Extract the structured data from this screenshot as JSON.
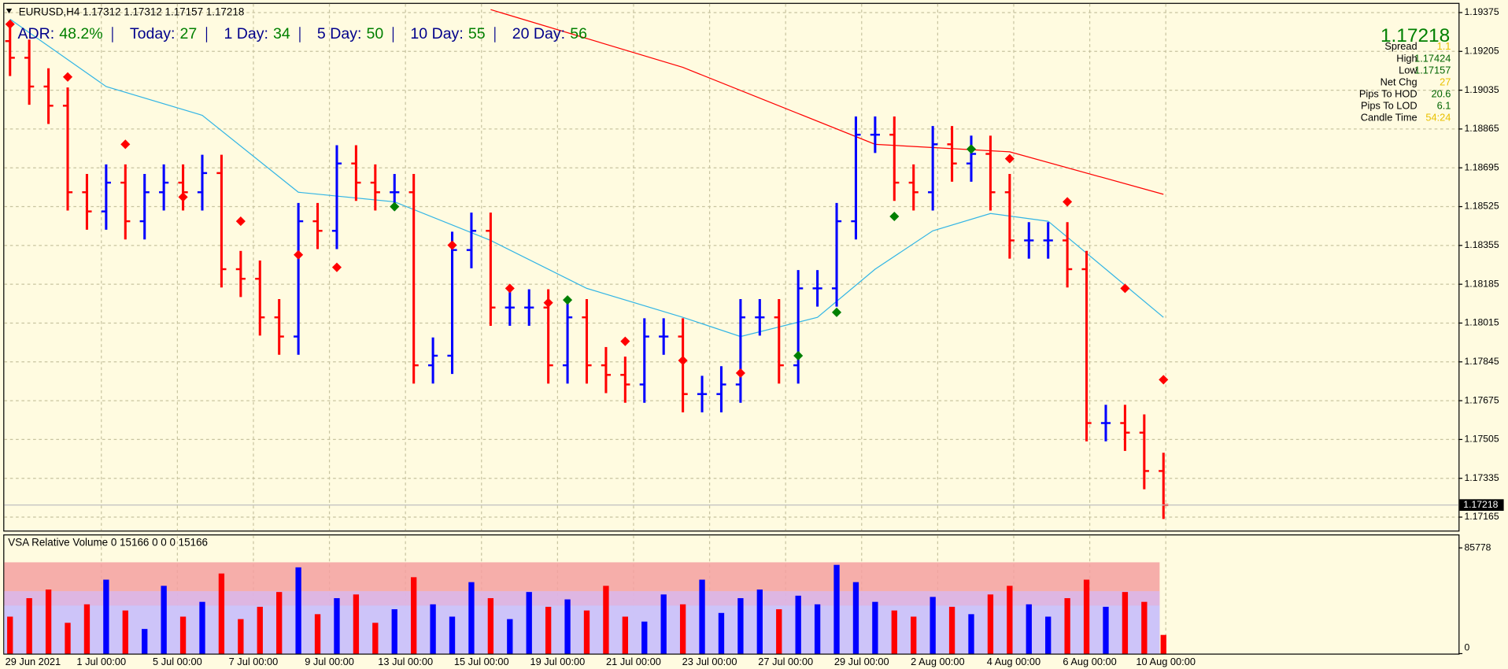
{
  "header": "EURUSD,H4  1.17312 1.17312 1.17157 1.17218",
  "adr": [
    {
      "label": "ADR:",
      "value": "48.2%"
    },
    {
      "label": "Today:",
      "value": "27"
    },
    {
      "label": "1 Day:",
      "value": "34"
    },
    {
      "label": "5 Day:",
      "value": "50"
    },
    {
      "label": "10 Day:",
      "value": "55"
    },
    {
      "label": "20 Day:",
      "value": "56"
    }
  ],
  "info": {
    "price": "1.17218",
    "rows": [
      {
        "label": "Spread",
        "value": "1.1"
      },
      {
        "label": "High",
        "value": "1.17424"
      },
      {
        "label": "Low",
        "value": "1.17157"
      },
      {
        "label": "Net Chg",
        "value": "27"
      },
      {
        "label": "Pips To HOD",
        "value": "20.6"
      },
      {
        "label": "Pips To LOD",
        "value": "6.1"
      },
      {
        "label": "Candle Time",
        "value": "54:24"
      }
    ]
  },
  "chart_data": [
    {
      "type": "ohlc",
      "up_color": "#0000ff",
      "down_color": "#ff0000",
      "open": [
        1.1925,
        1.19177,
        1.19051,
        1.18967,
        1.18588,
        1.18504,
        1.1863,
        1.18461,
        1.18588,
        1.1863,
        1.18588,
        1.18672,
        1.18251,
        1.18209,
        1.1804,
        1.17956,
        1.18461,
        1.18419,
        1.18714,
        1.1863,
        1.18588,
        1.18588,
        1.1783,
        1.17872,
        1.18335,
        1.18419,
        1.18083,
        1.18083,
        1.18083,
        1.1783,
        1.1804,
        1.1783,
        1.17788,
        1.17746,
        1.17956,
        1.17956,
        1.17704,
        1.17704,
        1.17746,
        1.1804,
        1.1804,
        1.1783,
        1.18167,
        1.18167,
        1.18461,
        1.1884,
        1.1884,
        1.1863,
        1.18588,
        1.18798,
        1.18714,
        1.18756,
        1.18588,
        1.18377,
        1.18377,
        1.18377,
        1.18251,
        1.17577,
        1.17577,
        1.17535,
        1.17367
      ],
      "high": [
        1.1933,
        1.19257,
        1.19131,
        1.19047,
        1.18668,
        1.1871,
        1.1871,
        1.18668,
        1.1871,
        1.1871,
        1.18752,
        1.18752,
        1.18331,
        1.18289,
        1.1812,
        1.18541,
        1.18541,
        1.18794,
        1.18794,
        1.1871,
        1.18668,
        1.18668,
        1.17952,
        1.18415,
        1.18499,
        1.18499,
        1.18163,
        1.18163,
        1.18163,
        1.1812,
        1.1812,
        1.1791,
        1.17868,
        1.18036,
        1.18036,
        1.18036,
        1.17784,
        1.17826,
        1.1812,
        1.1812,
        1.1812,
        1.18247,
        1.18247,
        1.18541,
        1.1892,
        1.1892,
        1.1892,
        1.1871,
        1.18878,
        1.18878,
        1.18836,
        1.18836,
        1.18668,
        1.18457,
        1.18457,
        1.18457,
        1.18331,
        1.17657,
        1.17657,
        1.17615,
        1.17447
      ],
      "low": [
        1.19097,
        1.18971,
        1.18887,
        1.18508,
        1.18424,
        1.18424,
        1.18381,
        1.18381,
        1.18508,
        1.18508,
        1.18508,
        1.18171,
        1.18129,
        1.1796,
        1.17876,
        1.17876,
        1.18339,
        1.18339,
        1.1855,
        1.18508,
        1.18508,
        1.1775,
        1.1775,
        1.17792,
        1.18255,
        1.18003,
        1.18003,
        1.18003,
        1.1775,
        1.1775,
        1.1775,
        1.17708,
        1.17666,
        1.17666,
        1.17876,
        1.17624,
        1.17624,
        1.17624,
        1.17666,
        1.1796,
        1.1775,
        1.1775,
        1.18087,
        1.18087,
        1.18381,
        1.1876,
        1.1855,
        1.18508,
        1.18508,
        1.18634,
        1.18634,
        1.18508,
        1.18297,
        1.18297,
        1.18297,
        1.18171,
        1.17497,
        1.17497,
        1.17455,
        1.17287,
        1.17157
      ],
      "close": [
        1.19177,
        1.19051,
        1.18967,
        1.18588,
        1.18504,
        1.1863,
        1.18461,
        1.18588,
        1.1863,
        1.18588,
        1.18672,
        1.18251,
        1.18209,
        1.1804,
        1.17956,
        1.18461,
        1.18419,
        1.18714,
        1.1863,
        1.18588,
        1.18588,
        1.1783,
        1.17872,
        1.18335,
        1.18419,
        1.18083,
        1.18083,
        1.18083,
        1.1783,
        1.1804,
        1.1783,
        1.17788,
        1.17746,
        1.17956,
        1.17956,
        1.17704,
        1.17704,
        1.17746,
        1.1804,
        1.1804,
        1.1783,
        1.18167,
        1.18167,
        1.18461,
        1.1884,
        1.1884,
        1.1863,
        1.18588,
        1.18798,
        1.18714,
        1.18756,
        1.18588,
        1.18377,
        1.18377,
        1.18377,
        1.18251,
        1.17577,
        1.17577,
        1.17535,
        1.17367,
        1.17218
      ],
      "ylim": [
        1.17106,
        1.19409
      ],
      "yticks": [
        1.19375,
        1.19205,
        1.19035,
        1.18865,
        1.18695,
        1.18525,
        1.18355,
        1.18185,
        1.18015,
        1.17845,
        1.17675,
        1.17505,
        1.17335,
        1.17165
      ],
      "time_labels": [
        "29 Jun 2021",
        "1 Jul 00:00",
        "5 Jul 00:00",
        "7 Jul 00:00",
        "9 Jul 00:00",
        "13 Jul 00:00",
        "15 Jul 00:00",
        "19 Jul 00:00",
        "21 Jul 00:00",
        "23 Jul 00:00",
        "27 Jul 00:00",
        "29 Jul 00:00",
        "2 Aug 00:00",
        "4 Aug 00:00",
        "6 Aug 00:00",
        "10 Aug 00:00"
      ],
      "ma_slow": {
        "color": "#ff0000",
        "x": [
          25,
          35,
          45,
          52,
          60
        ],
        "values": [
          1.19388,
          1.19135,
          1.18798,
          1.18765,
          1.18579
        ]
      },
      "ma_fast": {
        "color": "#33b5e5",
        "x": [
          0,
          5,
          10,
          15,
          20,
          25,
          30,
          35,
          38,
          42,
          45,
          48,
          51,
          54,
          57,
          60
        ],
        "values": [
          1.19346,
          1.19051,
          1.18925,
          1.18588,
          1.18546,
          1.18377,
          1.18167,
          1.1804,
          1.17956,
          1.1804,
          1.18251,
          1.18419,
          1.18495,
          1.18461,
          1.18251,
          1.1804
        ]
      },
      "ma_signal": {
        "up_color": "#008000",
        "down_color": "#ff0000",
        "x": [
          0,
          3,
          6,
          9,
          12,
          15,
          17,
          20,
          23,
          26,
          28,
          29,
          32,
          35,
          38,
          41,
          43,
          46,
          50,
          52,
          55,
          58,
          60
        ],
        "values": [
          1.19324,
          1.19093,
          1.18798,
          1.18567,
          1.18461,
          1.18314,
          1.18259,
          1.18525,
          1.18356,
          1.18167,
          1.18104,
          1.18116,
          1.17935,
          1.17851,
          1.17796,
          1.17872,
          1.18062,
          1.18482,
          1.18777,
          1.18735,
          1.18546,
          1.18167,
          1.17767
        ]
      }
    },
    {
      "type": "volume",
      "title": "VSA Relative Volume 0 15166 0 0 0 15166",
      "values": [
        30000,
        45000,
        52000,
        25000,
        40000,
        60000,
        35000,
        20000,
        55000,
        30000,
        42000,
        65000,
        28000,
        38000,
        50000,
        70000,
        32000,
        45000,
        48000,
        25000,
        36000,
        62000,
        40000,
        30000,
        58000,
        45000,
        28000,
        50000,
        38000,
        44000,
        35000,
        55000,
        30000,
        26000,
        48000,
        40000,
        60000,
        33000,
        45000,
        52000,
        36000,
        47000,
        40000,
        72000,
        58000,
        42000,
        35000,
        30000,
        46000,
        38000,
        32000,
        48000,
        55000,
        40000,
        30000,
        45000,
        60000,
        38000,
        50000,
        42000,
        15166
      ],
      "ylim": [
        0,
        85778
      ],
      "yticks": [
        85778,
        0
      ]
    }
  ]
}
